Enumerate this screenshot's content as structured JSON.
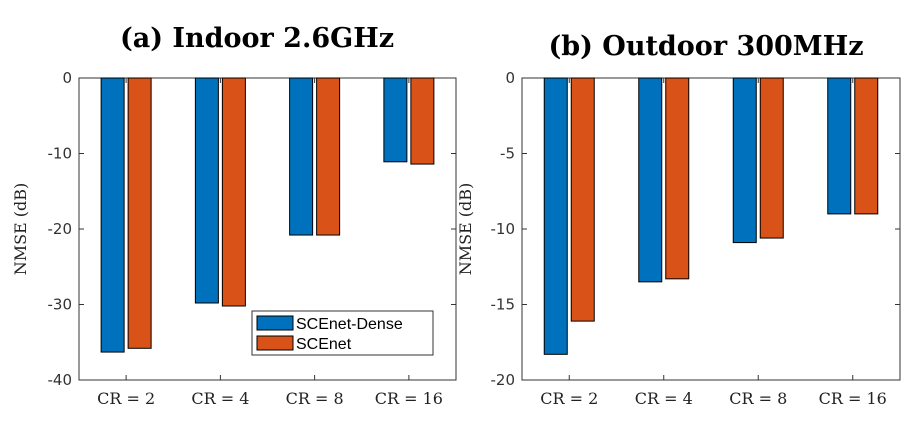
{
  "chart_data": [
    {
      "type": "bar",
      "title": "(a) Indoor 2.6GHz",
      "xlabel": "",
      "ylabel": "NMSE (dB)",
      "categories": [
        "CR = 2",
        "CR = 4",
        "CR = 8",
        "CR = 16"
      ],
      "ylim": [
        -40,
        0
      ],
      "yticks": [
        0,
        -10,
        -20,
        -30,
        -40
      ],
      "series": [
        {
          "name": "SCEnet-Dense",
          "values": [
            -36.3,
            -29.8,
            -20.8,
            -11.1
          ]
        },
        {
          "name": "SCEnet",
          "values": [
            -35.8,
            -30.2,
            -20.8,
            -11.4
          ]
        }
      ],
      "legend": {
        "placement": "bottom-right"
      }
    },
    {
      "type": "bar",
      "title": "(b) Outdoor 300MHz",
      "xlabel": "",
      "ylabel": "NMSE (dB)",
      "categories": [
        "CR = 2",
        "CR = 4",
        "CR = 8",
        "CR = 16"
      ],
      "ylim": [
        -20,
        0
      ],
      "yticks": [
        0,
        -5,
        -10,
        -15,
        -20
      ],
      "series": [
        {
          "name": "SCEnet-Dense",
          "values": [
            -18.3,
            -13.5,
            -10.9,
            -9.0
          ]
        },
        {
          "name": "SCEnet",
          "values": [
            -16.1,
            -13.3,
            -10.6,
            -9.0
          ]
        }
      ]
    }
  ],
  "colors": {
    "series0": "#0072BD",
    "series1": "#D95319",
    "axis": "#333333",
    "edge": "#000000"
  }
}
